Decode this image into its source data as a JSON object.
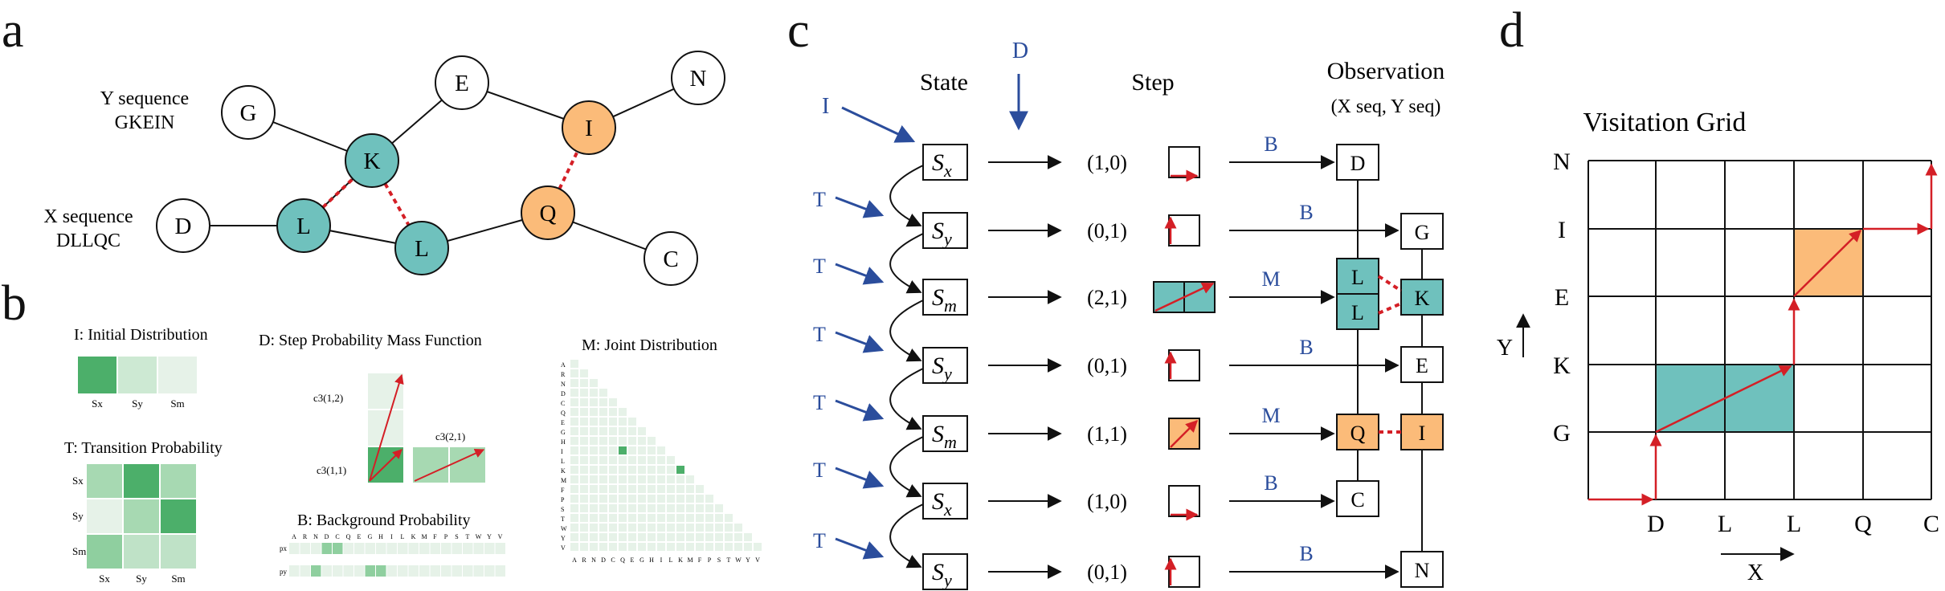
{
  "panels": {
    "a": {
      "letter": "a",
      "y_sequence_label": "Y sequence",
      "y_sequence_value": "GKEIN",
      "x_sequence_label": "X sequence",
      "x_sequence_value": "DLLQC",
      "nodes": [
        "G",
        "K",
        "E",
        "I",
        "N",
        "D",
        "L",
        "L",
        "Q",
        "C"
      ]
    },
    "b": {
      "letter": "b",
      "initial_title": "I: Initial Distribution",
      "initial_labels": [
        "Sx",
        "Sy",
        "Sm"
      ],
      "transition_title": "T: Transition Probability",
      "transition_labels": [
        "Sx",
        "Sy",
        "Sm"
      ],
      "step_title": "D: Step Probability Mass Function",
      "step_labels": [
        "c3(1,2)",
        "c3(2,1)",
        "c3(1,1)"
      ],
      "background_title": "B: Background Probability",
      "background_rows": [
        "px",
        "py"
      ],
      "amino_acids": [
        "A",
        "R",
        "N",
        "D",
        "C",
        "Q",
        "E",
        "G",
        "H",
        "I",
        "L",
        "K",
        "M",
        "F",
        "P",
        "S",
        "T",
        "W",
        "Y",
        "V"
      ],
      "joint_title": "M: Joint Distribution"
    },
    "c": {
      "letter": "c",
      "state_header": "State",
      "step_header": "Step",
      "observation_header": "Observation",
      "observation_sub": "(X seq, Y seq)",
      "d_label": "D",
      "i_label": "I",
      "t_label": "T",
      "states": [
        "x",
        "y",
        "m",
        "y",
        "m",
        "x",
        "y"
      ],
      "steps": [
        "(1,0)",
        "(0,1)",
        "(2,1)",
        "(0,1)",
        "(1,1)",
        "(1,0)",
        "(0,1)"
      ],
      "edge_labels": [
        "B",
        "B",
        "M",
        "B",
        "M",
        "B",
        "B"
      ],
      "x_column": [
        "D",
        "L",
        "L",
        "Q",
        "C"
      ],
      "y_column": [
        "G",
        "K",
        "E",
        "I",
        "N"
      ]
    },
    "d": {
      "letter": "d",
      "title": "Visitation Grid",
      "y_axis_letter": "Y",
      "x_axis_letter": "X",
      "row_labels": [
        "N",
        "I",
        "E",
        "K",
        "G"
      ],
      "col_labels": [
        "D",
        "L",
        "L",
        "Q",
        "C"
      ]
    }
  },
  "colors": {
    "teal": "#6fc1bd",
    "orange": "#fbbb79",
    "blue": "#2b4d9c",
    "red": "#d41f26",
    "green_dark": "#4caf6a",
    "green_mid": "#8fcf9f",
    "green_light": "#cde9d3",
    "green_pale": "#e6f2e8"
  }
}
